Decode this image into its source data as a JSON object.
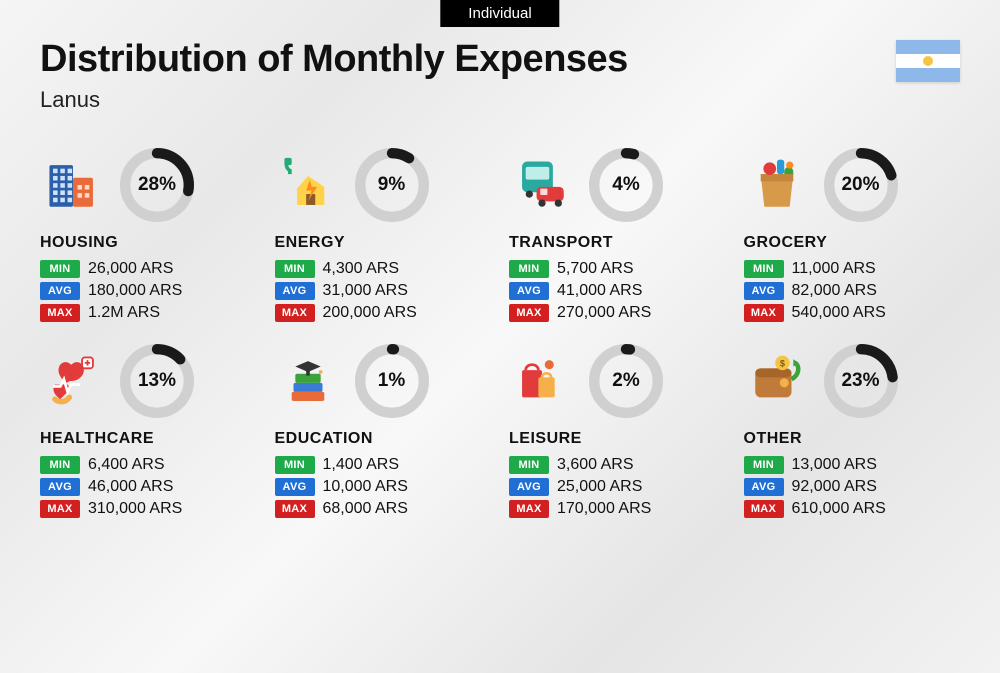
{
  "badge": "Individual",
  "title": "Distribution of Monthly Expenses",
  "subtitle": "Lanus",
  "flag": {
    "stripe1": "#8fb8ea",
    "stripe2": "#ffffff",
    "stripe3": "#8fb8ea",
    "sun": "#f5c542"
  },
  "ring_style": {
    "track_color": "#d0d0d0",
    "progress_color": "#1a1a1a",
    "stroke_width": 9
  },
  "tag_labels": {
    "min": "MIN",
    "avg": "AVG",
    "max": "MAX"
  },
  "tag_colors": {
    "min": "#1faa4a",
    "avg": "#1f6fd4",
    "max": "#d21f1f"
  },
  "typography": {
    "title_size": 38,
    "subtitle_size": 22,
    "category_size": 16,
    "ring_pct_size": 19,
    "stat_size": 16
  },
  "background": "#f2f2f2",
  "categories": [
    {
      "name": "HOUSING",
      "pct": 28,
      "min": "26,000 ARS",
      "avg": "180,000 ARS",
      "max": "1.2M ARS",
      "icon": "buildings"
    },
    {
      "name": "ENERGY",
      "pct": 9,
      "min": "4,300 ARS",
      "avg": "31,000 ARS",
      "max": "200,000 ARS",
      "icon": "energy"
    },
    {
      "name": "TRANSPORT",
      "pct": 4,
      "min": "5,700 ARS",
      "avg": "41,000 ARS",
      "max": "270,000 ARS",
      "icon": "transport"
    },
    {
      "name": "GROCERY",
      "pct": 20,
      "min": "11,000 ARS",
      "avg": "82,000 ARS",
      "max": "540,000 ARS",
      "icon": "grocery"
    },
    {
      "name": "HEALTHCARE",
      "pct": 13,
      "min": "6,400 ARS",
      "avg": "46,000 ARS",
      "max": "310,000 ARS",
      "icon": "healthcare"
    },
    {
      "name": "EDUCATION",
      "pct": 1,
      "min": "1,400 ARS",
      "avg": "10,000 ARS",
      "max": "68,000 ARS",
      "icon": "education"
    },
    {
      "name": "LEISURE",
      "pct": 2,
      "min": "3,600 ARS",
      "avg": "25,000 ARS",
      "max": "170,000 ARS",
      "icon": "leisure"
    },
    {
      "name": "OTHER",
      "pct": 23,
      "min": "13,000 ARS",
      "avg": "92,000 ARS",
      "max": "610,000 ARS",
      "icon": "other"
    }
  ]
}
